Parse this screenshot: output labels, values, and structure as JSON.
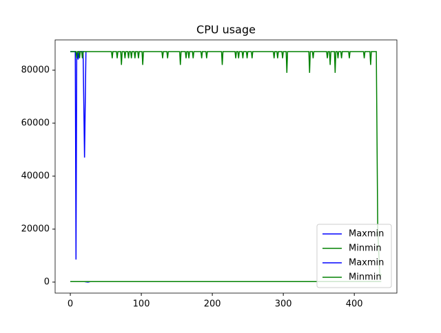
{
  "chart_data": {
    "type": "line",
    "title": "CPU usage",
    "xlim": [
      -21.4,
      460
    ],
    "xticks": [
      0,
      100,
      200,
      300,
      400
    ],
    "ylim": [
      -4160,
      91430
    ],
    "yticks": [
      0,
      20000,
      40000,
      60000,
      80000
    ],
    "legend": "lower right",
    "series": [
      {
        "name": "Maxmin",
        "color": "#0000ff",
        "x": [
          0,
          7,
          8,
          9,
          10,
          11,
          12,
          18,
          19,
          20,
          21,
          22
        ],
        "values": [
          87000,
          87000,
          8500,
          84000,
          87000,
          84000,
          87000,
          87000,
          67000,
          47000,
          67000,
          87000
        ]
      },
      {
        "name": "Minmin",
        "color": "#008000",
        "x": [
          0,
          8,
          9,
          10,
          12,
          13,
          14,
          16,
          17,
          18,
          58,
          59,
          60,
          65,
          66,
          67,
          71,
          72,
          73,
          76,
          77,
          78,
          81,
          82,
          83,
          85,
          86,
          87,
          90,
          91,
          92,
          95,
          96,
          97,
          101,
          102,
          103,
          129,
          130,
          131,
          136,
          137,
          138,
          154,
          155,
          156,
          162,
          163,
          164,
          166,
          167,
          168,
          172,
          173,
          174,
          184,
          185,
          186,
          191,
          192,
          193,
          213,
          214,
          215,
          232,
          233,
          234,
          236,
          237,
          238,
          242,
          243,
          244,
          248,
          249,
          250,
          255,
          256,
          257,
          286,
          287,
          288,
          291,
          292,
          293,
          298,
          299,
          300,
          304,
          305,
          306,
          336,
          337,
          338,
          341,
          342,
          343,
          361,
          362,
          363,
          365,
          366,
          367,
          372,
          373,
          374,
          376,
          377,
          378,
          381,
          382,
          383,
          392,
          393,
          394,
          413,
          414,
          415,
          422,
          423,
          424,
          431,
          433,
          436,
          438
        ],
        "values": [
          87000,
          87000,
          84500,
          87000,
          87000,
          84500,
          87000,
          87000,
          84500,
          87000,
          87000,
          84500,
          87000,
          87000,
          84500,
          87000,
          87000,
          82000,
          87000,
          87000,
          84500,
          87000,
          87000,
          84500,
          87000,
          87000,
          84500,
          87000,
          87000,
          84500,
          87000,
          87000,
          84500,
          87000,
          87000,
          82000,
          87000,
          87000,
          84500,
          87000,
          87000,
          84500,
          87000,
          87000,
          82000,
          87000,
          87000,
          84500,
          87000,
          87000,
          84500,
          87000,
          87000,
          84500,
          87000,
          87000,
          84500,
          87000,
          87000,
          84500,
          87000,
          87000,
          82000,
          87000,
          87000,
          84500,
          87000,
          87000,
          84500,
          87000,
          87000,
          84500,
          87000,
          87000,
          84500,
          87000,
          87000,
          84500,
          87000,
          87000,
          84500,
          87000,
          87000,
          84500,
          87000,
          87000,
          84500,
          87000,
          87000,
          79000,
          87000,
          87000,
          79000,
          87000,
          87000,
          84500,
          87000,
          87000,
          84500,
          87000,
          87000,
          82000,
          87000,
          87000,
          79000,
          87000,
          87000,
          84500,
          87000,
          87000,
          84500,
          87000,
          87000,
          84500,
          87000,
          87000,
          84500,
          87000,
          87000,
          82000,
          87000,
          87000,
          20000,
          2000,
          3000
        ]
      },
      {
        "name": "Maxmin",
        "color": "#0000ff",
        "x": [
          0,
          20,
          22,
          25,
          28,
          35
        ],
        "values": [
          200,
          200,
          100,
          0,
          200,
          200
        ]
      },
      {
        "name": "Minmin",
        "color": "#008000",
        "x": [
          0,
          438
        ],
        "values": [
          200,
          200
        ]
      }
    ]
  }
}
